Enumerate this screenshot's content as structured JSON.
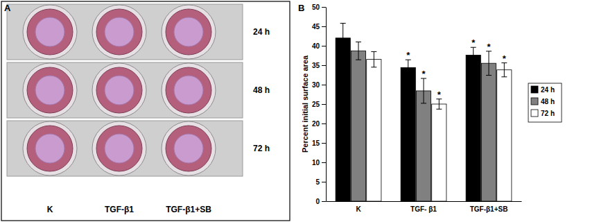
{
  "panel_a": {
    "label": "A",
    "rows": [
      "24 h",
      "48 h",
      "72 h"
    ],
    "columns": [
      "K",
      "TGF-β1",
      "TGF-β1+SB"
    ]
  },
  "chart_data": {
    "type": "bar",
    "title": "B",
    "categories": [
      "K",
      "TGF- β1",
      "TGF-β1+SB"
    ],
    "y_label": "Percent initial surface area",
    "series": [
      {
        "name": "24 h",
        "color": "#000000",
        "values": [
          42,
          34.4,
          37.6
        ],
        "errors": [
          3.8,
          2,
          2
        ],
        "significant": [
          false,
          true,
          true
        ]
      },
      {
        "name": "48 h",
        "color": "#808080",
        "values": [
          38.7,
          28.4,
          35.5
        ],
        "errors": [
          2.3,
          3.2,
          3.1
        ],
        "significant": [
          false,
          true,
          true
        ]
      },
      {
        "name": "72 h",
        "color": "#ffffff",
        "values": [
          36.5,
          25,
          33.8
        ],
        "errors": [
          2,
          1.3,
          1.8
        ],
        "significant": [
          false,
          true,
          true
        ]
      }
    ],
    "annotation": "*",
    "ylim": [
      0,
      50
    ],
    "yticks": [
      0,
      5,
      10,
      15,
      20,
      25,
      30,
      35,
      40,
      45,
      50
    ],
    "grid": false,
    "legend": "right"
  }
}
